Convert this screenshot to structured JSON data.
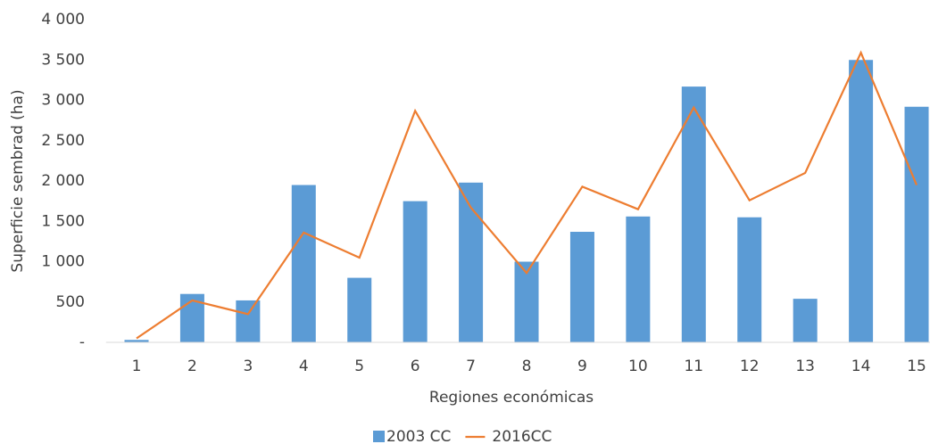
{
  "chart_data": {
    "type": "combo",
    "y_label": "Superficie sembrad (ha)",
    "x_label": "Regiones económicas",
    "categories": [
      "1",
      "2",
      "3",
      "4",
      "5",
      "6",
      "7",
      "8",
      "9",
      "10",
      "11",
      "12",
      "13",
      "14",
      "15"
    ],
    "series": [
      {
        "name": "2003 CC",
        "type": "bar",
        "color": "#5b9bd5",
        "values": [
          30,
          600,
          520,
          1950,
          800,
          1750,
          1980,
          1000,
          1370,
          1560,
          3170,
          1550,
          540,
          3500,
          2920
        ]
      },
      {
        "name": "2016CC",
        "type": "line",
        "color": "#ed7d31",
        "values": [
          50,
          520,
          350,
          1360,
          1050,
          2870,
          1670,
          860,
          1930,
          1650,
          2910,
          1760,
          2100,
          3590,
          1950
        ]
      }
    ],
    "ylim": [
      0,
      4000
    ],
    "yticks": [
      {
        "value": 0,
        "label": "-"
      },
      500,
      {
        "value": 1000,
        "label": "1 000"
      },
      {
        "value": 1500,
        "label": "1 500"
      },
      {
        "value": 2000,
        "label": "2 000"
      },
      {
        "value": 2500,
        "label": "2 500"
      },
      {
        "value": 3000,
        "label": "3 000"
      },
      {
        "value": 3500,
        "label": "3 500"
      },
      {
        "value": 4000,
        "label": "4 000"
      }
    ],
    "grid": false,
    "legend": "bottom"
  }
}
